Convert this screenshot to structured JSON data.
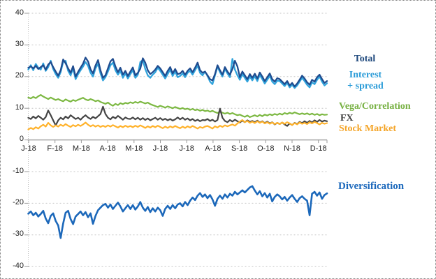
{
  "legend": {
    "total": {
      "text": "Total",
      "color": "#1F497D"
    },
    "interest": {
      "line1": "Interest",
      "line2": "+ spread",
      "color": "#2B9CD8"
    },
    "vega": {
      "text": "Vega/Correlation",
      "color": "#76B041"
    },
    "fx": {
      "text": "FX",
      "color": "#3F3F3F"
    },
    "stock": {
      "text": "Stock Market",
      "color": "#F4A427"
    },
    "diversification": {
      "text": "Diversification",
      "color": "#1D69BC"
    }
  },
  "chart_data": {
    "type": "line",
    "title": "",
    "xlabel": "",
    "ylabel": "",
    "x_axis": {
      "unit": "month",
      "tick_labels": [
        "J-18",
        "F-18",
        "M-18",
        "A-18",
        "M-18",
        "J-18",
        "J-18",
        "A-18",
        "S-18",
        "O-18",
        "N-18",
        "D-18"
      ]
    },
    "y_axis": {
      "min": -40,
      "max": 40,
      "tick_step": 10,
      "ticks": [
        40,
        30,
        20,
        10,
        0,
        -10,
        -20,
        -30,
        -40
      ],
      "tick_labels": [
        "40",
        "30",
        "20",
        "10",
        "0",
        "-10",
        "-20",
        "-30",
        "-40"
      ]
    },
    "grid": "horizontal dashed gridlines every 10 units; solid zero axis; dotted vertical y-axis",
    "legend_position": "right",
    "x_step_months": 0.1,
    "series": [
      {
        "name": "Interest + spread",
        "color": "#30A3DC",
        "width": 2.3,
        "values": [
          22.2,
          23.6,
          22.0,
          24.0,
          22.8,
          22.2,
          24.2,
          21.8,
          23.0,
          25.0,
          22.4,
          20.8,
          19.6,
          21.4,
          24.6,
          25.0,
          21.8,
          20.4,
          22.6,
          19.2,
          20.8,
          22.0,
          23.2,
          24.6,
          23.4,
          21.2,
          20.0,
          22.6,
          24.0,
          21.0,
          18.8,
          19.8,
          21.6,
          23.6,
          24.4,
          22.0,
          20.6,
          21.8,
          19.6,
          21.0,
          19.4,
          20.8,
          22.0,
          19.6,
          20.6,
          24.6,
          25.2,
          22.4,
          20.4,
          19.6,
          20.6,
          21.4,
          22.8,
          21.8,
          20.6,
          19.4,
          20.8,
          22.2,
          20.2,
          21.6,
          19.8,
          20.2,
          21.0,
          19.8,
          21.2,
          21.8,
          20.6,
          22.0,
          23.4,
          21.2,
          20.4,
          21.6,
          20.2,
          18.4,
          17.6,
          20.4,
          23.2,
          21.4,
          20.0,
          22.4,
          21.0,
          19.8,
          25.6,
          22.2,
          20.4,
          19.0,
          20.8,
          19.6,
          18.4,
          20.0,
          18.8,
          20.1,
          18.6,
          20.5,
          19.2,
          17.8,
          19.0,
          20.2,
          18.4,
          17.6,
          18.7,
          18.6,
          17.8,
          17.0,
          18.0,
          16.6,
          17.4,
          16.4,
          17.2,
          18.4,
          19.6,
          18.6,
          17.4,
          16.6,
          18.2,
          17.6,
          19.0,
          20.0,
          18.4,
          17.2,
          17.9
        ]
      },
      {
        "name": "Total",
        "color": "#1F4C8F",
        "width": 2.3,
        "values": [
          22.8,
          23.2,
          22.6,
          23.4,
          22.4,
          23.0,
          23.6,
          22.2,
          23.8,
          24.6,
          23.0,
          21.6,
          20.3,
          22.0,
          25.4,
          24.2,
          22.6,
          21.2,
          23.3,
          20.0,
          21.5,
          22.8,
          24.1,
          26.0,
          24.8,
          22.3,
          21.0,
          23.5,
          25.2,
          22.0,
          19.6,
          20.4,
          22.6,
          24.8,
          25.6,
          23.2,
          21.4,
          22.8,
          20.6,
          21.8,
          20.2,
          21.6,
          22.9,
          20.4,
          21.2,
          22.5,
          25.8,
          24.4,
          22.0,
          20.8,
          21.4,
          22.2,
          23.4,
          22.6,
          21.4,
          20.2,
          21.8,
          23.0,
          21.0,
          22.4,
          20.8,
          21.0,
          21.8,
          20.6,
          21.8,
          22.6,
          21.4,
          22.8,
          24.4,
          22.0,
          21.2,
          21.6,
          20.4,
          19.2,
          18.8,
          20.8,
          23.6,
          22.0,
          20.6,
          23.0,
          21.6,
          20.6,
          22.4,
          25.0,
          23.2,
          19.8,
          21.6,
          20.4,
          19.2,
          20.8,
          19.6,
          20.9,
          19.4,
          21.3,
          20.0,
          18.6,
          19.8,
          21.0,
          19.2,
          18.4,
          19.5,
          19.2,
          18.4,
          17.6,
          18.6,
          17.2,
          18.0,
          16.9,
          17.8,
          19.0,
          20.3,
          19.4,
          18.2,
          17.4,
          19.0,
          18.4,
          19.8,
          20.6,
          19.2,
          18.0,
          18.6
        ]
      },
      {
        "name": "Vega/Correlation",
        "color": "#7CB842",
        "width": 2.2,
        "values": [
          13.4,
          13.1,
          13.6,
          13.2,
          13.8,
          14.2,
          13.7,
          13.3,
          12.9,
          13.4,
          13.0,
          12.6,
          12.9,
          12.5,
          12.2,
          12.8,
          12.4,
          12.1,
          12.6,
          12.3,
          12.7,
          13.0,
          13.3,
          12.8,
          12.5,
          12.9,
          12.6,
          12.2,
          12.5,
          12.0,
          11.7,
          11.4,
          11.8,
          11.2,
          10.8,
          11.4,
          11.0,
          11.6,
          11.3,
          11.7,
          11.5,
          11.9,
          11.6,
          12.0,
          11.7,
          12.1,
          11.8,
          11.5,
          11.8,
          11.3,
          11.0,
          10.7,
          10.4,
          10.8,
          10.5,
          10.2,
          10.6,
          10.3,
          10.0,
          10.4,
          10.1,
          9.8,
          10.1,
          9.7,
          9.9,
          9.5,
          9.8,
          9.4,
          9.6,
          9.2,
          9.5,
          9.1,
          9.3,
          8.9,
          9.2,
          8.8,
          8.5,
          8.9,
          8.6,
          8.3,
          8.6,
          8.2,
          8.5,
          8.1,
          7.8,
          8.0,
          7.6,
          7.3,
          7.7,
          7.2,
          7.5,
          7.8,
          7.4,
          7.9,
          7.5,
          8.0,
          7.7,
          8.1,
          7.8,
          8.2,
          7.9,
          8.3,
          8.0,
          8.5,
          8.2,
          8.6,
          8.3,
          8.7,
          8.4,
          8.1,
          8.4,
          8.1,
          8.4,
          8.0,
          8.3,
          7.9,
          8.2,
          7.8,
          8.1,
          7.9,
          8.0
        ]
      },
      {
        "name": "FX",
        "color": "#454545",
        "width": 2.2,
        "values": [
          7.0,
          6.6,
          7.4,
          6.8,
          7.6,
          7.0,
          6.4,
          7.2,
          9.3,
          7.8,
          6.2,
          4.6,
          6.2,
          7.0,
          6.5,
          7.4,
          6.8,
          7.8,
          7.2,
          6.6,
          7.0,
          6.4,
          7.2,
          7.8,
          7.1,
          6.6,
          7.3,
          6.8,
          7.5,
          8.2,
          10.5,
          8.2,
          7.0,
          6.5,
          7.3,
          6.8,
          7.6,
          7.0,
          6.4,
          7.1,
          6.7,
          6.6,
          7.1,
          6.5,
          7.0,
          6.4,
          6.9,
          6.3,
          6.8,
          6.2,
          6.6,
          7.0,
          6.4,
          6.9,
          6.3,
          6.7,
          6.2,
          6.6,
          6.1,
          6.5,
          7.1,
          6.5,
          7.0,
          6.4,
          6.8,
          6.2,
          6.6,
          6.0,
          6.4,
          5.9,
          6.3,
          6.2,
          6.6,
          6.0,
          6.4,
          5.8,
          6.3,
          9.9,
          7.0,
          6.0,
          5.6,
          6.3,
          5.8,
          6.4,
          5.9,
          5.5,
          6.1,
          5.6,
          6.2,
          5.7,
          6.0,
          5.6,
          6.1,
          5.5,
          5.9,
          5.3,
          5.8,
          5.2,
          5.6,
          4.9,
          5.4,
          5.0,
          5.5,
          4.9,
          4.4,
          5.2,
          4.7,
          5.4,
          5.0,
          5.7,
          5.3,
          5.9,
          5.4,
          6.0,
          5.5,
          6.2,
          5.7,
          6.3,
          5.8,
          6.1,
          5.9
        ]
      },
      {
        "name": "Stock Market",
        "color": "#FFB22B",
        "width": 2.2,
        "values": [
          3.3,
          3.8,
          3.4,
          4.0,
          3.6,
          4.3,
          4.8,
          4.2,
          5.4,
          4.6,
          4.1,
          4.6,
          4.2,
          4.8,
          4.4,
          5.0,
          4.5,
          4.1,
          4.7,
          4.3,
          4.8,
          4.4,
          4.9,
          5.5,
          4.8,
          4.3,
          4.7,
          4.2,
          4.6,
          4.1,
          4.5,
          4.1,
          4.6,
          4.2,
          4.7,
          4.3,
          3.9,
          4.4,
          4.0,
          4.5,
          4.1,
          4.4,
          4.0,
          4.5,
          4.1,
          4.6,
          4.2,
          3.8,
          4.3,
          3.9,
          4.4,
          4.0,
          4.5,
          4.1,
          3.7,
          4.2,
          3.8,
          4.3,
          3.9,
          4.4,
          4.0,
          3.7,
          4.2,
          3.8,
          4.3,
          3.9,
          4.4,
          4.0,
          3.6,
          4.1,
          3.8,
          4.2,
          4.4,
          4.0,
          3.6,
          4.3,
          3.9,
          4.5,
          4.1,
          4.6,
          4.3,
          4.6,
          4.9,
          4.5,
          5.2,
          5.8,
          6.3,
          5.6,
          6.0,
          5.4,
          5.8,
          5.3,
          5.9,
          5.4,
          5.8,
          5.2,
          5.6,
          5.1,
          5.5,
          5.0,
          5.4,
          5.0,
          5.5,
          5.1,
          5.6,
          5.2,
          4.7,
          5.3,
          4.9,
          5.5,
          5.1,
          5.4,
          5.0,
          5.6,
          5.2,
          5.7,
          5.3,
          4.9,
          5.4,
          5.1,
          5.3
        ]
      },
      {
        "name": "Diversification",
        "color": "#1C68BA",
        "width": 2.6,
        "values": [
          -23.3,
          -22.6,
          -23.8,
          -23.0,
          -24.2,
          -23.4,
          -22.4,
          -24.8,
          -26.3,
          -24.0,
          -23.2,
          -25.6,
          -27.0,
          -31.0,
          -26.4,
          -23.0,
          -22.4,
          -25.0,
          -26.6,
          -24.2,
          -23.4,
          -22.6,
          -23.8,
          -22.8,
          -24.4,
          -23.2,
          -26.5,
          -24.0,
          -22.2,
          -21.4,
          -20.6,
          -20.2,
          -21.4,
          -20.4,
          -21.8,
          -20.8,
          -19.8,
          -21.0,
          -22.6,
          -21.6,
          -20.6,
          -21.8,
          -20.6,
          -22.0,
          -21.0,
          -19.6,
          -21.4,
          -22.4,
          -21.2,
          -22.8,
          -21.6,
          -22.6,
          -21.4,
          -22.2,
          -24.0,
          -21.8,
          -20.8,
          -21.8,
          -20.6,
          -21.6,
          -20.4,
          -20.0,
          -21.0,
          -19.6,
          -20.6,
          -19.2,
          -18.2,
          -19.0,
          -17.6,
          -16.8,
          -18.0,
          -17.2,
          -18.4,
          -17.4,
          -18.8,
          -20.8,
          -18.6,
          -17.6,
          -18.6,
          -17.2,
          -18.2,
          -17.0,
          -17.6,
          -16.4,
          -17.2,
          -16.6,
          -15.9,
          -16.6,
          -15.8,
          -15.0,
          -14.6,
          -16.0,
          -17.2,
          -16.2,
          -17.8,
          -16.8,
          -18.2,
          -17.0,
          -19.4,
          -18.0,
          -17.2,
          -17.8,
          -18.8,
          -18.0,
          -19.2,
          -18.2,
          -17.4,
          -18.6,
          -19.6,
          -18.4,
          -17.8,
          -18.6,
          -19.2,
          -23.8,
          -17.0,
          -16.4,
          -17.6,
          -16.6,
          -18.6,
          -17.4,
          -16.9
        ]
      }
    ]
  }
}
